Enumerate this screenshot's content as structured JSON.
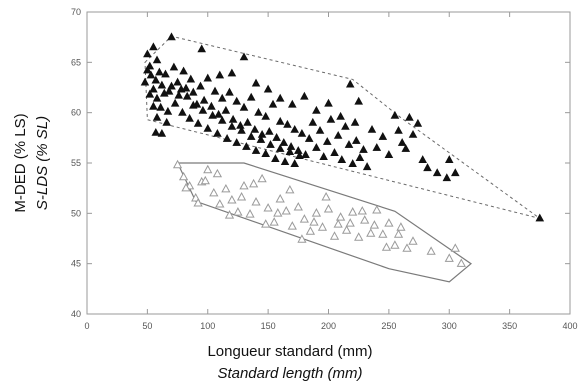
{
  "chart_data": {
    "type": "scatter",
    "xlabel": "Longueur standard (mm)",
    "xlabel_translation": "Standard length (mm)",
    "ylabel": "M-DED (% LS)",
    "ylabel_translation": "S-LDS (% SL)",
    "xlim": [
      0,
      400
    ],
    "ylim": [
      40,
      70
    ],
    "x_ticks": [
      0,
      50,
      100,
      150,
      200,
      250,
      300,
      350,
      400
    ],
    "y_ticks": [
      40,
      45,
      50,
      55,
      60,
      65,
      70
    ],
    "grid": false,
    "colors": {
      "filled_marker": "#111111",
      "open_marker": "#9a9a9a",
      "hull_dashed": "#6a6a6a",
      "hull_solid": "#7a7a7a"
    },
    "series": [
      {
        "marker": "filled-triangle",
        "points": [
          [
            50,
            65.8
          ],
          [
            52,
            64.6
          ],
          [
            55,
            66.5
          ],
          [
            58,
            65.2
          ],
          [
            70,
            67.5
          ],
          [
            95,
            66.3
          ],
          [
            130,
            65.5
          ],
          [
            50,
            64.2
          ],
          [
            53,
            63.7
          ],
          [
            57,
            63.2
          ],
          [
            60,
            64.0
          ],
          [
            62,
            62.7
          ],
          [
            65,
            63.8
          ],
          [
            68,
            62.1
          ],
          [
            72,
            64.5
          ],
          [
            75,
            63.0
          ],
          [
            78,
            62.3
          ],
          [
            80,
            64.1
          ],
          [
            83,
            61.6
          ],
          [
            86,
            63.3
          ],
          [
            88,
            62.0
          ],
          [
            91,
            60.8
          ],
          [
            94,
            62.6
          ],
          [
            97,
            61.2
          ],
          [
            100,
            63.4
          ],
          [
            103,
            60.6
          ],
          [
            106,
            62.1
          ],
          [
            109,
            59.8
          ],
          [
            112,
            61.4
          ],
          [
            115,
            60.2
          ],
          [
            118,
            62.0
          ],
          [
            121,
            59.3
          ],
          [
            124,
            61.1
          ],
          [
            127,
            58.7
          ],
          [
            130,
            60.5
          ],
          [
            133,
            59.0
          ],
          [
            136,
            61.5
          ],
          [
            139,
            58.3
          ],
          [
            142,
            60.0
          ],
          [
            145,
            57.8
          ],
          [
            148,
            59.6
          ],
          [
            151,
            58.1
          ],
          [
            154,
            60.8
          ],
          [
            157,
            57.5
          ],
          [
            160,
            59.1
          ],
          [
            163,
            57.0
          ],
          [
            166,
            58.8
          ],
          [
            169,
            56.6
          ],
          [
            172,
            58.3
          ],
          [
            175,
            56.2
          ],
          [
            178,
            57.9
          ],
          [
            181,
            55.8
          ],
          [
            184,
            57.4
          ],
          [
            187,
            59.0
          ],
          [
            190,
            56.5
          ],
          [
            193,
            58.2
          ],
          [
            196,
            55.6
          ],
          [
            199,
            57.1
          ],
          [
            202,
            59.3
          ],
          [
            205,
            56.0
          ],
          [
            208,
            57.7
          ],
          [
            211,
            55.3
          ],
          [
            214,
            58.6
          ],
          [
            217,
            56.8
          ],
          [
            220,
            54.9
          ],
          [
            223,
            57.2
          ],
          [
            226,
            55.5
          ],
          [
            229,
            56.3
          ],
          [
            232,
            54.6
          ],
          [
            55,
            62.3
          ],
          [
            58,
            61.4
          ],
          [
            61,
            60.5
          ],
          [
            64,
            61.9
          ],
          [
            67,
            60.1
          ],
          [
            70,
            62.6
          ],
          [
            73,
            60.9
          ],
          [
            76,
            61.7
          ],
          [
            79,
            60.0
          ],
          [
            82,
            62.4
          ],
          [
            85,
            59.4
          ],
          [
            88,
            60.7
          ],
          [
            92,
            58.9
          ],
          [
            96,
            60.2
          ],
          [
            100,
            58.4
          ],
          [
            104,
            59.7
          ],
          [
            108,
            57.9
          ],
          [
            112,
            59.2
          ],
          [
            116,
            57.4
          ],
          [
            120,
            58.6
          ],
          [
            124,
            57.0
          ],
          [
            128,
            58.2
          ],
          [
            132,
            56.6
          ],
          [
            136,
            57.6
          ],
          [
            140,
            56.2
          ],
          [
            144,
            57.3
          ],
          [
            148,
            55.9
          ],
          [
            152,
            56.8
          ],
          [
            156,
            55.4
          ],
          [
            160,
            56.4
          ],
          [
            164,
            55.1
          ],
          [
            168,
            56.1
          ],
          [
            172,
            54.9
          ],
          [
            176,
            55.7
          ],
          [
            48,
            63.0
          ],
          [
            52,
            61.8
          ],
          [
            55,
            60.6
          ],
          [
            58,
            59.5
          ],
          [
            57,
            58.0
          ],
          [
            62,
            57.9
          ],
          [
            66,
            59.0
          ],
          [
            110,
            63.7
          ],
          [
            120,
            63.9
          ],
          [
            140,
            62.9
          ],
          [
            150,
            62.3
          ],
          [
            160,
            61.4
          ],
          [
            170,
            60.8
          ],
          [
            180,
            61.6
          ],
          [
            190,
            60.2
          ],
          [
            200,
            60.9
          ],
          [
            210,
            59.6
          ],
          [
            218,
            62.8
          ],
          [
            225,
            61.1
          ],
          [
            222,
            59.0
          ],
          [
            236,
            58.3
          ],
          [
            240,
            56.5
          ],
          [
            245,
            57.6
          ],
          [
            250,
            55.8
          ],
          [
            255,
            59.7
          ],
          [
            258,
            58.2
          ],
          [
            261,
            57.0
          ],
          [
            264,
            56.4
          ],
          [
            267,
            59.5
          ],
          [
            270,
            57.8
          ],
          [
            274,
            58.9
          ],
          [
            278,
            55.3
          ],
          [
            282,
            54.5
          ],
          [
            290,
            54.0
          ],
          [
            298,
            53.5
          ],
          [
            300,
            55.3
          ],
          [
            305,
            54.0
          ],
          [
            375,
            49.5
          ]
        ]
      },
      {
        "marker": "open-triangle",
        "points": [
          [
            75,
            54.8
          ],
          [
            80,
            53.6
          ],
          [
            85,
            52.7
          ],
          [
            90,
            51.5
          ],
          [
            95,
            53.1
          ],
          [
            100,
            54.3
          ],
          [
            105,
            52.0
          ],
          [
            110,
            50.9
          ],
          [
            115,
            52.4
          ],
          [
            120,
            51.3
          ],
          [
            125,
            50.1
          ],
          [
            130,
            52.7
          ],
          [
            135,
            49.9
          ],
          [
            140,
            51.1
          ],
          [
            145,
            53.4
          ],
          [
            150,
            50.5
          ],
          [
            155,
            49.1
          ],
          [
            160,
            51.4
          ],
          [
            165,
            50.2
          ],
          [
            170,
            48.7
          ],
          [
            175,
            50.6
          ],
          [
            180,
            49.4
          ],
          [
            185,
            48.2
          ],
          [
            190,
            50.0
          ],
          [
            195,
            48.6
          ],
          [
            200,
            50.4
          ],
          [
            205,
            47.7
          ],
          [
            210,
            49.6
          ],
          [
            215,
            48.3
          ],
          [
            220,
            50.1
          ],
          [
            225,
            47.6
          ],
          [
            230,
            49.3
          ],
          [
            235,
            48.0
          ],
          [
            240,
            50.3
          ],
          [
            245,
            47.9
          ],
          [
            250,
            49.0
          ],
          [
            255,
            46.8
          ],
          [
            260,
            48.6
          ],
          [
            265,
            46.5
          ],
          [
            270,
            47.2
          ],
          [
            285,
            46.2
          ],
          [
            300,
            45.5
          ],
          [
            305,
            46.5
          ],
          [
            310,
            45.0
          ],
          [
            82,
            52.5
          ],
          [
            92,
            51.0
          ],
          [
            98,
            53.2
          ],
          [
            108,
            53.9
          ],
          [
            118,
            49.8
          ],
          [
            128,
            51.6
          ],
          [
            138,
            52.9
          ],
          [
            148,
            48.9
          ],
          [
            158,
            50.0
          ],
          [
            168,
            52.3
          ],
          [
            178,
            47.4
          ],
          [
            188,
            49.1
          ],
          [
            198,
            51.6
          ],
          [
            208,
            48.9
          ],
          [
            218,
            49.0
          ],
          [
            228,
            50.2
          ],
          [
            238,
            48.8
          ],
          [
            248,
            46.6
          ],
          [
            258,
            47.9
          ]
        ]
      }
    ],
    "hulls": [
      {
        "style": "dashed",
        "vertices": [
          [
            48,
            65
          ],
          [
            70,
            67.6
          ],
          [
            220,
            63.3
          ],
          [
            260,
            59.5
          ],
          [
            375,
            49.5
          ],
          [
            50,
            59.3
          ]
        ]
      },
      {
        "style": "solid",
        "vertices": [
          [
            75,
            55.0
          ],
          [
            130,
            55.0
          ],
          [
            255,
            50.2
          ],
          [
            318,
            45.0
          ],
          [
            300,
            43.2
          ],
          [
            250,
            44.5
          ],
          [
            90,
            51.2
          ]
        ]
      }
    ]
  }
}
